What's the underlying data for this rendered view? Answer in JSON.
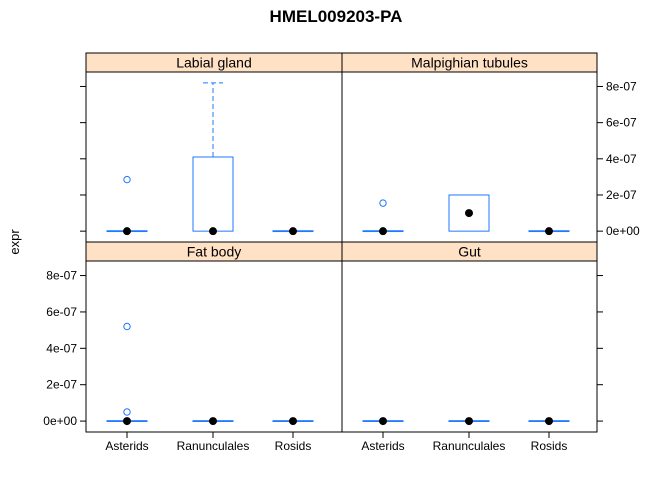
{
  "chart_data": {
    "type": "boxplot",
    "title": "HMEL009203-PA",
    "xlabel": "",
    "ylabel": "expr",
    "ylim": [
      -6e-08,
      8.8e-07
    ],
    "yticks": [
      0,
      2e-07,
      4e-07,
      6e-07,
      8e-07
    ],
    "ytick_labels": [
      "0e+00",
      "2e-07",
      "4e-07",
      "6e-07",
      "8e-07"
    ],
    "categories": [
      "Asterids",
      "Ranunculales",
      "Rosids"
    ],
    "colors": {
      "box": "#1f78ff",
      "median": "#000000",
      "strip": "#ffe1c5",
      "frame": "#000000"
    },
    "panels": [
      {
        "name": "Labial gland",
        "boxes": [
          {
            "category": "Asterids",
            "q1": 0,
            "median": 0,
            "q3": 0,
            "whisker_low": 0,
            "whisker_high": 0,
            "outliers": [
              2.85e-07
            ]
          },
          {
            "category": "Ranunculales",
            "q1": 0,
            "median": 0,
            "q3": 4.1e-07,
            "whisker_low": 0,
            "whisker_high": 8.2e-07,
            "outliers": []
          },
          {
            "category": "Rosids",
            "q1": 0,
            "median": 0,
            "q3": 0,
            "whisker_low": 0,
            "whisker_high": 0,
            "outliers": []
          }
        ]
      },
      {
        "name": "Malpighian tubules",
        "boxes": [
          {
            "category": "Asterids",
            "q1": 0,
            "median": 0,
            "q3": 0,
            "whisker_low": 0,
            "whisker_high": 0,
            "outliers": [
              1.55e-07
            ]
          },
          {
            "category": "Ranunculales",
            "q1": 0,
            "median": 1e-07,
            "q3": 2e-07,
            "whisker_low": 0,
            "whisker_high": 2e-07,
            "outliers": []
          },
          {
            "category": "Rosids",
            "q1": 0,
            "median": 0,
            "q3": 0,
            "whisker_low": 0,
            "whisker_high": 0,
            "outliers": []
          }
        ]
      },
      {
        "name": "Fat body",
        "boxes": [
          {
            "category": "Asterids",
            "q1": 0,
            "median": 0,
            "q3": 0,
            "whisker_low": 0,
            "whisker_high": 0,
            "outliers": [
              5.2e-07,
              5e-08
            ]
          },
          {
            "category": "Ranunculales",
            "q1": 0,
            "median": 0,
            "q3": 0,
            "whisker_low": 0,
            "whisker_high": 0,
            "outliers": []
          },
          {
            "category": "Rosids",
            "q1": 0,
            "median": 0,
            "q3": 0,
            "whisker_low": 0,
            "whisker_high": 0,
            "outliers": []
          }
        ]
      },
      {
        "name": "Gut",
        "boxes": [
          {
            "category": "Asterids",
            "q1": 0,
            "median": 0,
            "q3": 0,
            "whisker_low": 0,
            "whisker_high": 0,
            "outliers": []
          },
          {
            "category": "Ranunculales",
            "q1": 0,
            "median": 0,
            "q3": 0,
            "whisker_low": 0,
            "whisker_high": 0,
            "outliers": []
          },
          {
            "category": "Rosids",
            "q1": 0,
            "median": 0,
            "q3": 0,
            "whisker_low": 0,
            "whisker_high": 0,
            "outliers": []
          }
        ]
      }
    ]
  }
}
